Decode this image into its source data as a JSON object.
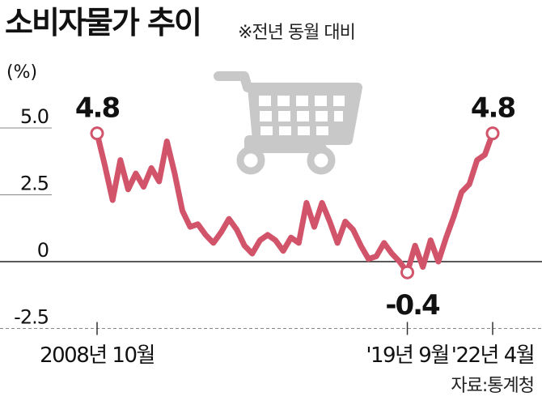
{
  "header": {
    "title": "소비자물가 추이",
    "subtitle": "※전년 동월 대비"
  },
  "source": "자료:통계청",
  "colors": {
    "line": "#d2546a",
    "icon": "#c8c8c8",
    "grid": "#888888",
    "text": "#111111"
  },
  "icon": "shopping-cart-icon",
  "chart_data": {
    "type": "line",
    "title": "소비자물가 추이",
    "subtitle": "※전년 동월 대비",
    "ylabel": "(%)",
    "ylim": [
      -2.5,
      5.0
    ],
    "y_ticks": [
      {
        "value": 5.0,
        "label": "5.0"
      },
      {
        "value": 2.5,
        "label": "2.5"
      },
      {
        "value": 0,
        "label": "0"
      },
      {
        "value": -2.5,
        "label": "-2.5"
      }
    ],
    "x_ticks": [
      {
        "index": 0,
        "label": "2008년 10월"
      },
      {
        "index": 40,
        "label": "'19년 9월"
      },
      {
        "index": 51,
        "label": "'22년 4월"
      }
    ],
    "annotations": [
      {
        "index": 0,
        "label": "4.8"
      },
      {
        "index": 40,
        "label": "-0.4"
      },
      {
        "index": 51,
        "label": "4.8"
      }
    ],
    "values": [
      4.8,
      3.6,
      2.3,
      3.8,
      2.7,
      3.3,
      2.8,
      3.5,
      3.0,
      4.5,
      3.3,
      1.9,
      1.3,
      1.4,
      1.0,
      0.7,
      1.1,
      1.6,
      1.2,
      0.6,
      0.3,
      0.8,
      1.0,
      0.8,
      0.4,
      0.9,
      0.7,
      2.2,
      1.3,
      2.2,
      1.5,
      0.7,
      1.5,
      1.2,
      0.6,
      0.1,
      0.2,
      0.7,
      0.3,
      0.0,
      -0.4,
      0.6,
      -0.2,
      0.8,
      0.0,
      0.9,
      1.7,
      2.6,
      2.9,
      3.8,
      4.0,
      4.8
    ]
  }
}
